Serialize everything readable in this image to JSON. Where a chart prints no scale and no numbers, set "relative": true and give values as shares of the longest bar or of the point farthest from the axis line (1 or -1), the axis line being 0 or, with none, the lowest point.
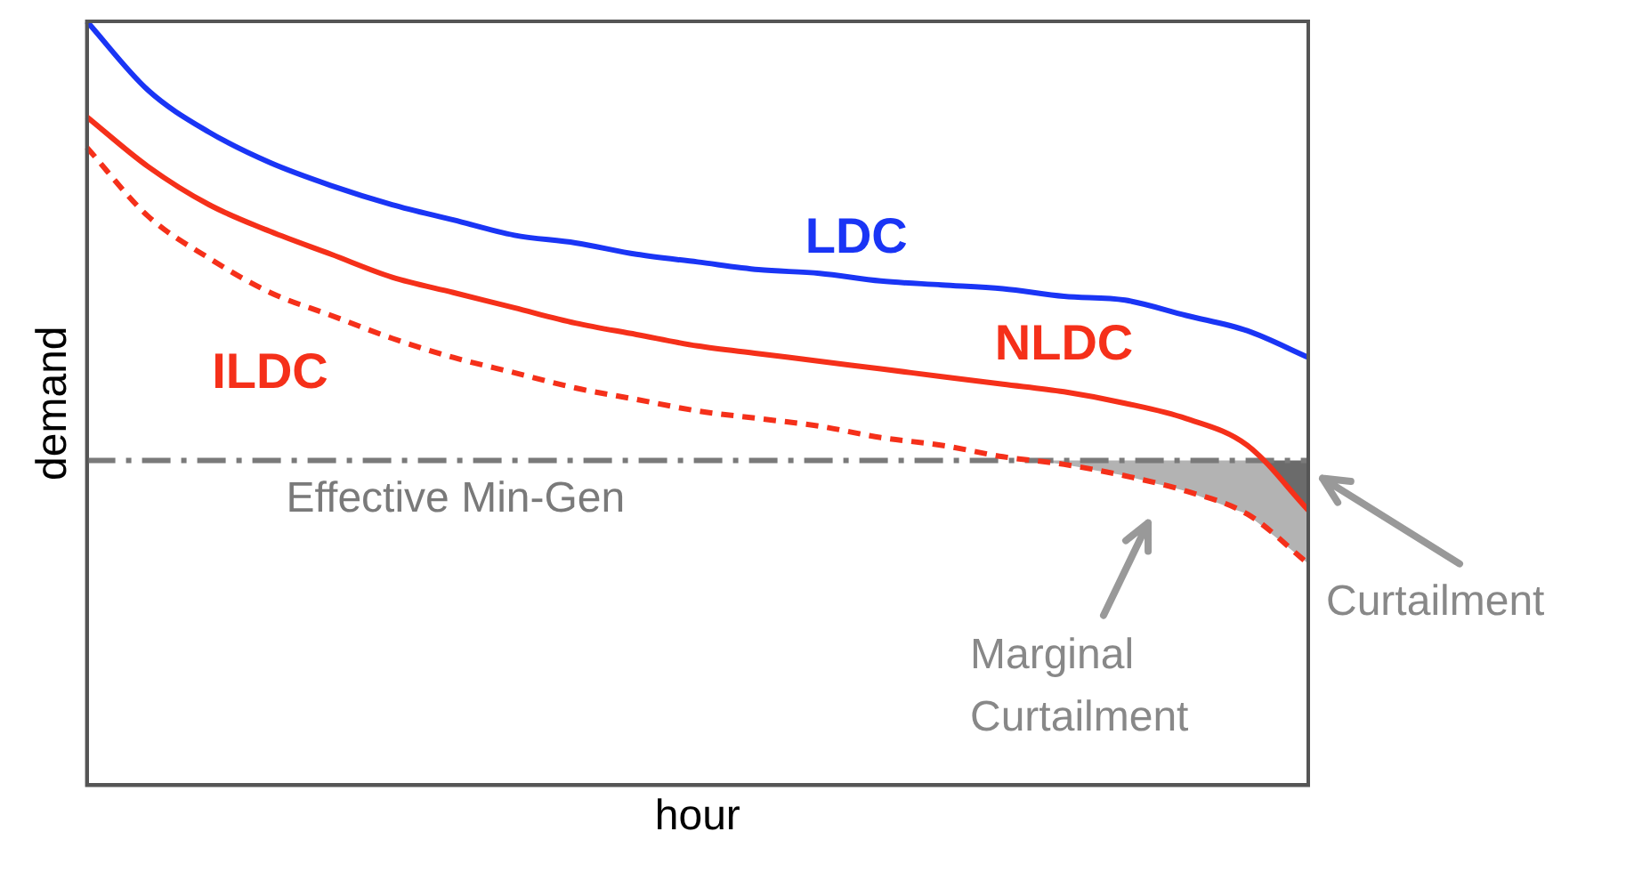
{
  "chart_data": {
    "type": "line",
    "relative": true,
    "xlabel": "hour",
    "ylabel": "demand",
    "legend": false,
    "grid": false,
    "categories": [
      null,
      null,
      null,
      null,
      null,
      null,
      null,
      null,
      null,
      null,
      null,
      null,
      null,
      null,
      null,
      null,
      null,
      null,
      null,
      null,
      null
    ],
    "series": [
      {
        "name": "LDC",
        "color": "#1a35f5",
        "line_style": "solid",
        "values": [
          1,
          0.91,
          0.855,
          0.815,
          0.785,
          0.76,
          0.74,
          0.72,
          0.71,
          0.695,
          0.685,
          0.675,
          0.67,
          0.66,
          0.655,
          0.65,
          0.64,
          0.635,
          0.615,
          0.595,
          0.56
        ]
      },
      {
        "name": "NLDC",
        "color": "#f5301a",
        "line_style": "solid",
        "values": [
          0.875,
          0.81,
          0.76,
          0.725,
          0.695,
          0.665,
          0.645,
          0.625,
          0.605,
          0.59,
          0.575,
          0.565,
          0.555,
          0.545,
          0.535,
          0.525,
          0.515,
          0.5,
          0.48,
          0.445,
          0.36
        ]
      },
      {
        "name": "ILDC",
        "color": "#f5301a",
        "line_style": "dashed",
        "values": [
          0.835,
          0.745,
          0.69,
          0.645,
          0.615,
          0.585,
          0.56,
          0.54,
          0.52,
          0.505,
          0.49,
          0.48,
          0.47,
          0.455,
          0.445,
          0.43,
          0.42,
          0.405,
          0.385,
          0.355,
          0.29
        ]
      }
    ],
    "ref_lines": [
      {
        "axis": "y",
        "value": 0.425,
        "label": "Effective Min-Gen",
        "color": "#7a7a7a",
        "line_style": "dashdot"
      }
    ],
    "annotations": [
      "Curtailment",
      "Marginal Curtailment"
    ]
  }
}
